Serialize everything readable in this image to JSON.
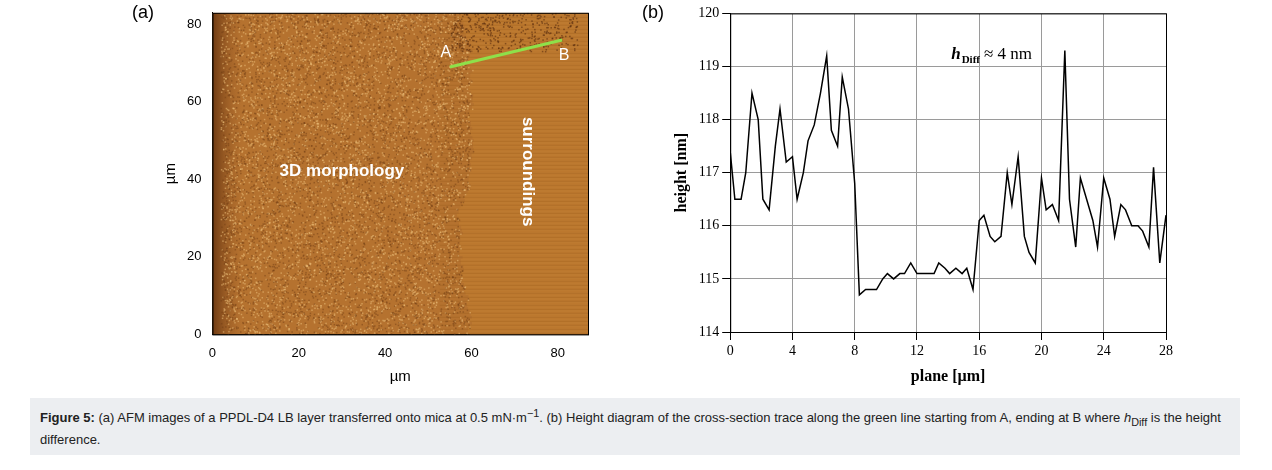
{
  "chart_data": [
    {
      "type": "image",
      "panel": "(a)",
      "x_label": "µm",
      "y_label": "µm",
      "xlim": [
        0,
        87
      ],
      "ylim": [
        0,
        83
      ],
      "xticks": [
        0,
        20,
        40,
        60,
        80
      ],
      "yticks": [
        0,
        20,
        40,
        60,
        80
      ],
      "grid": false,
      "regions": [
        {
          "label": "3D morphology",
          "x": 30,
          "y": 42
        },
        {
          "label": "surroundings",
          "x": 73,
          "y": 42
        }
      ],
      "series": [
        {
          "name": "cross-section",
          "color": "#8ee04a",
          "points": [
            {
              "label": "A",
              "x": 55,
              "y": 69
            },
            {
              "label": "B",
              "x": 81,
              "y": 76
            }
          ]
        }
      ]
    },
    {
      "type": "line",
      "panel": "(b)",
      "x_label": "plane [µm]",
      "y_label": "height [nm]",
      "xlim": [
        0,
        28
      ],
      "ylim": [
        114,
        120
      ],
      "xticks": [
        0,
        4,
        8,
        12,
        16,
        20,
        24,
        28
      ],
      "yticks": [
        114,
        115,
        116,
        117,
        118,
        119,
        120
      ],
      "grid": true,
      "color": "#000000",
      "annotation": {
        "symbol": "h",
        "subscript": "Diff",
        "text": "≈ 4 nm",
        "x": 14.2,
        "y": 119.15
      },
      "x": [
        0,
        0.3,
        0.7,
        1.0,
        1.4,
        1.8,
        2.1,
        2.5,
        2.9,
        3.2,
        3.6,
        4.0,
        4.3,
        4.7,
        5.0,
        5.4,
        5.8,
        6.2,
        6.5,
        6.9,
        7.2,
        7.6,
        8.0,
        8.3,
        8.7,
        9.0,
        9.4,
        9.8,
        10.1,
        10.5,
        10.9,
        11.2,
        11.6,
        12.0,
        12.3,
        12.7,
        13.1,
        13.4,
        13.8,
        14.1,
        14.5,
        14.9,
        15.2,
        15.6,
        16.0,
        16.3,
        16.7,
        17.0,
        17.4,
        17.8,
        18.1,
        18.5,
        18.9,
        19.2,
        19.6,
        20.0,
        20.3,
        20.7,
        21.1,
        21.5,
        21.8,
        22.2,
        22.5,
        22.9,
        23.3,
        23.6,
        24.0,
        24.4,
        24.7,
        25.1,
        25.4,
        25.8,
        26.2,
        26.5,
        26.9,
        27.2,
        27.6,
        28.0
      ],
      "values": [
        117.4,
        116.5,
        116.5,
        117.0,
        118.5,
        118.0,
        116.5,
        116.3,
        117.5,
        118.2,
        117.2,
        117.3,
        116.5,
        117.0,
        117.6,
        117.9,
        118.5,
        119.2,
        117.8,
        117.5,
        118.8,
        118.2,
        116.8,
        114.7,
        114.8,
        114.8,
        114.8,
        115.0,
        115.1,
        115.0,
        115.1,
        115.1,
        115.3,
        115.1,
        115.1,
        115.1,
        115.1,
        115.3,
        115.2,
        115.1,
        115.2,
        115.1,
        115.2,
        114.8,
        116.1,
        116.2,
        115.8,
        115.7,
        115.8,
        117.0,
        116.4,
        117.3,
        115.8,
        115.5,
        115.3,
        116.9,
        116.3,
        116.4,
        116.1,
        119.3,
        116.5,
        115.6,
        116.9,
        116.5,
        116.1,
        115.6,
        116.9,
        116.5,
        115.8,
        116.4,
        116.3,
        116.0,
        116.0,
        115.9,
        115.6,
        117.1,
        115.3,
        116.2
      ]
    }
  ],
  "caption": {
    "label": "Figure 5:",
    "segments": [
      {
        "text": " (a) AFM images of a PPDL-D4 LB layer transferred onto mica at 0.5 mN·m",
        "format": "plain"
      },
      {
        "text": "−1",
        "format": "sup"
      },
      {
        "text": ". (b) Height diagram of the cross-section trace along the green line starting from A, ending at B where ",
        "format": "plain"
      },
      {
        "text": "h",
        "format": "italic"
      },
      {
        "text": "Diff",
        "format": "sub"
      },
      {
        "text": " is the height difference.",
        "format": "plain"
      }
    ]
  }
}
